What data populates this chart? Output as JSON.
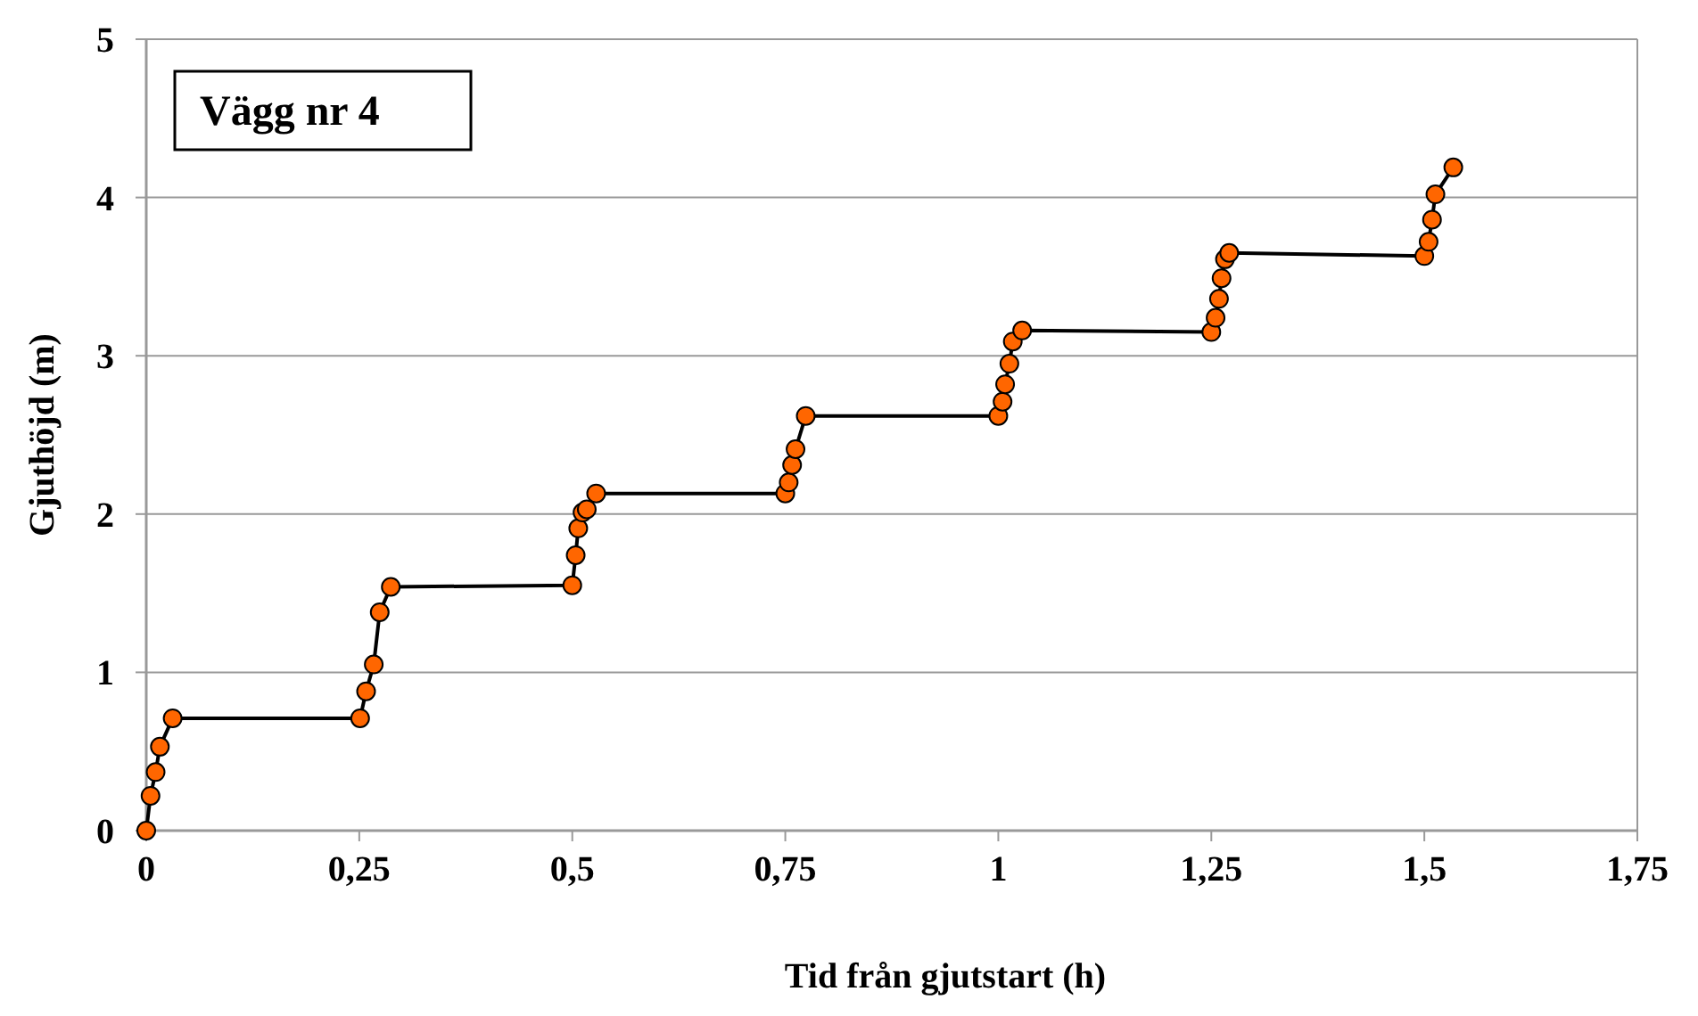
{
  "chart_data": {
    "type": "line",
    "xlabel": "Tid från gjutstart (h)",
    "ylabel": "Gjuthöjd (m)",
    "annotations": [
      "Vägg nr 4"
    ],
    "x": [
      0,
      0.005,
      0.011,
      0.016,
      0.031,
      0.251,
      0.258,
      0.267,
      0.274,
      0.287,
      0.5,
      0.504,
      0.507,
      0.512,
      0.517,
      0.528,
      0.75,
      0.754,
      0.758,
      0.762,
      0.774,
      1.0,
      1.005,
      1.008,
      1.013,
      1.017,
      1.028,
      1.25,
      1.255,
      1.259,
      1.262,
      1.266,
      1.271,
      1.5,
      1.505,
      1.509,
      1.513,
      1.534
    ],
    "series": [
      {
        "color": "#ff6600",
        "values": [
          0,
          0.22,
          0.37,
          0.53,
          0.71,
          0.71,
          0.88,
          1.05,
          1.38,
          1.54,
          1.55,
          1.74,
          1.91,
          2.01,
          2.03,
          2.13,
          2.13,
          2.2,
          2.31,
          2.41,
          2.62,
          2.62,
          2.71,
          2.82,
          2.95,
          3.09,
          3.16,
          3.15,
          3.24,
          3.36,
          3.49,
          3.61,
          3.65,
          3.63,
          3.72,
          3.86,
          4.02,
          4.19
        ]
      }
    ],
    "xlim": [
      0,
      1.75
    ],
    "xticks": [
      0,
      {
        "value": 0.25,
        "label": "0,25"
      },
      {
        "value": 0.5,
        "label": "0,5"
      },
      {
        "value": 0.75,
        "label": "0,75"
      },
      1,
      {
        "value": 1.25,
        "label": "1,25"
      },
      {
        "value": 1.5,
        "label": "1,5"
      },
      {
        "value": 1.75,
        "label": "1,75"
      }
    ],
    "ylim": [
      0,
      5
    ],
    "yticks": [
      0,
      1,
      2,
      3,
      4,
      5
    ],
    "grid": "y",
    "marker": "circle",
    "line_style": "solid"
  }
}
